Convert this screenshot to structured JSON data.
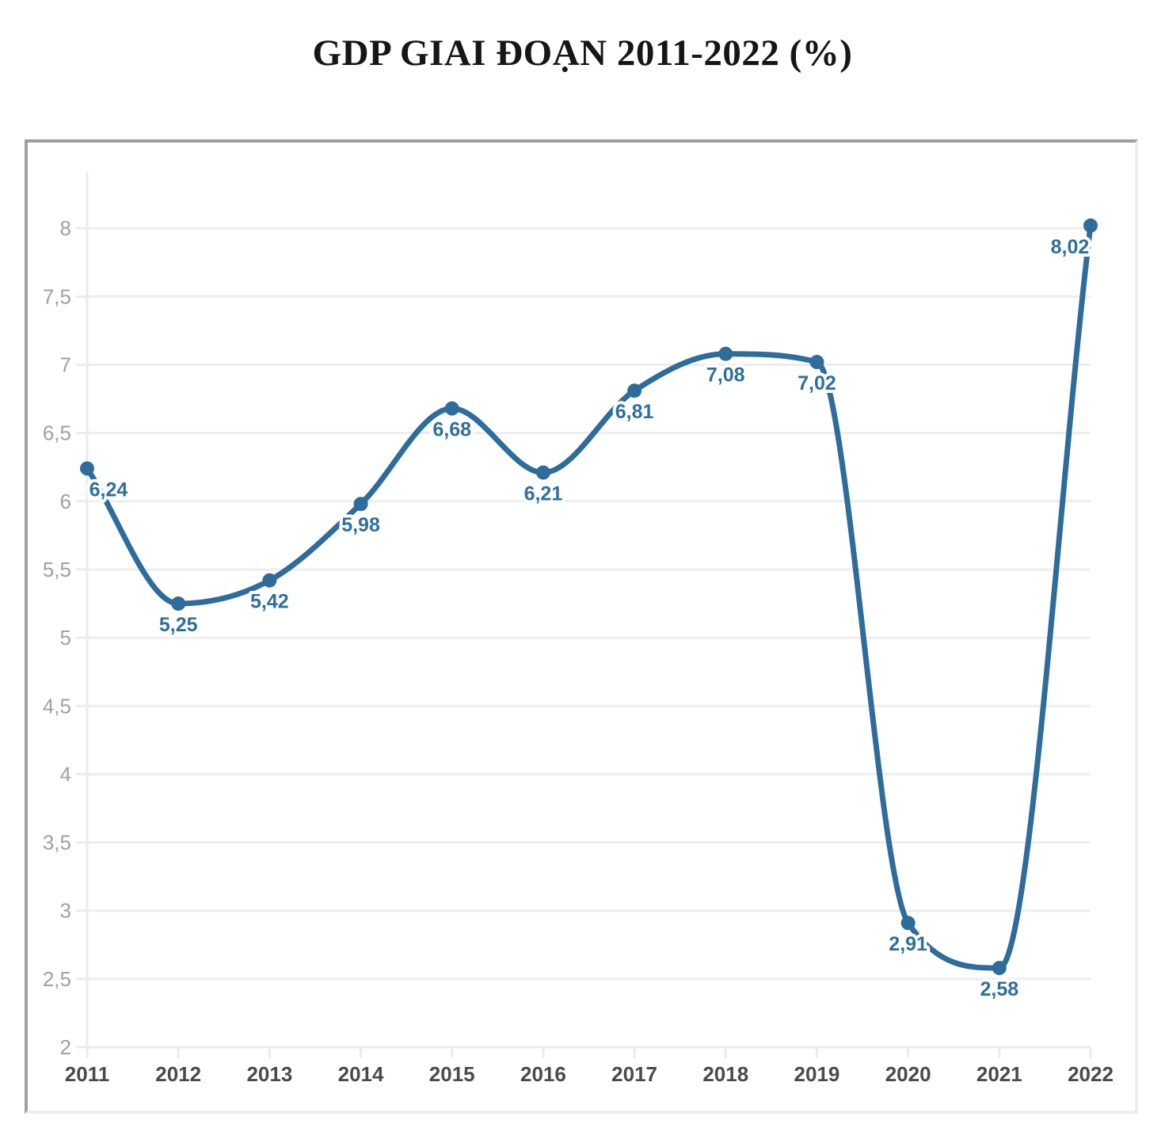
{
  "title": "GDP GIAI ĐOẠN 2011-2022 (%)",
  "chart_data": {
    "type": "line",
    "title": "GDP GIAI ĐOẠN 2011-2022 (%)",
    "categories": [
      "2011",
      "2012",
      "2013",
      "2014",
      "2015",
      "2016",
      "2017",
      "2018",
      "2019",
      "2020",
      "2021",
      "2022"
    ],
    "values": [
      6.24,
      5.25,
      5.42,
      5.98,
      6.68,
      6.21,
      6.81,
      7.08,
      7.02,
      2.91,
      2.58,
      8.02
    ],
    "point_labels": [
      "6,24",
      "5,25",
      "5,42",
      "5,98",
      "6,68",
      "6,21",
      "6,81",
      "7,08",
      "7,02",
      "2,91",
      "2,58",
      "8,02"
    ],
    "y_axis": {
      "min": 2,
      "max": 8,
      "step": 0.5,
      "tick_labels": [
        "2",
        "2,5",
        "3",
        "3,5",
        "4",
        "4,5",
        "5",
        "5,5",
        "6",
        "6,5",
        "7",
        "7,5",
        "8"
      ]
    },
    "ylim": [
      2,
      8.45
    ],
    "xlabel": "",
    "ylabel": "",
    "grid": "horizontal",
    "legend": "none",
    "smooth": true
  },
  "colors": {
    "background": "#ffffff",
    "line": "#2d6c9b",
    "marker": "#2d6c9b",
    "point_label": "#2d6f9f",
    "point_label_halo": "#ffffff",
    "grid_line": "#ededed",
    "axis_line": "#ebebeb",
    "y_tick_label": "#a0a0a0",
    "x_tick_label": "#4a4a4a",
    "title": "#161616",
    "frame_border_dark": "#9e9e9e",
    "frame_border_light": "#ececec"
  }
}
